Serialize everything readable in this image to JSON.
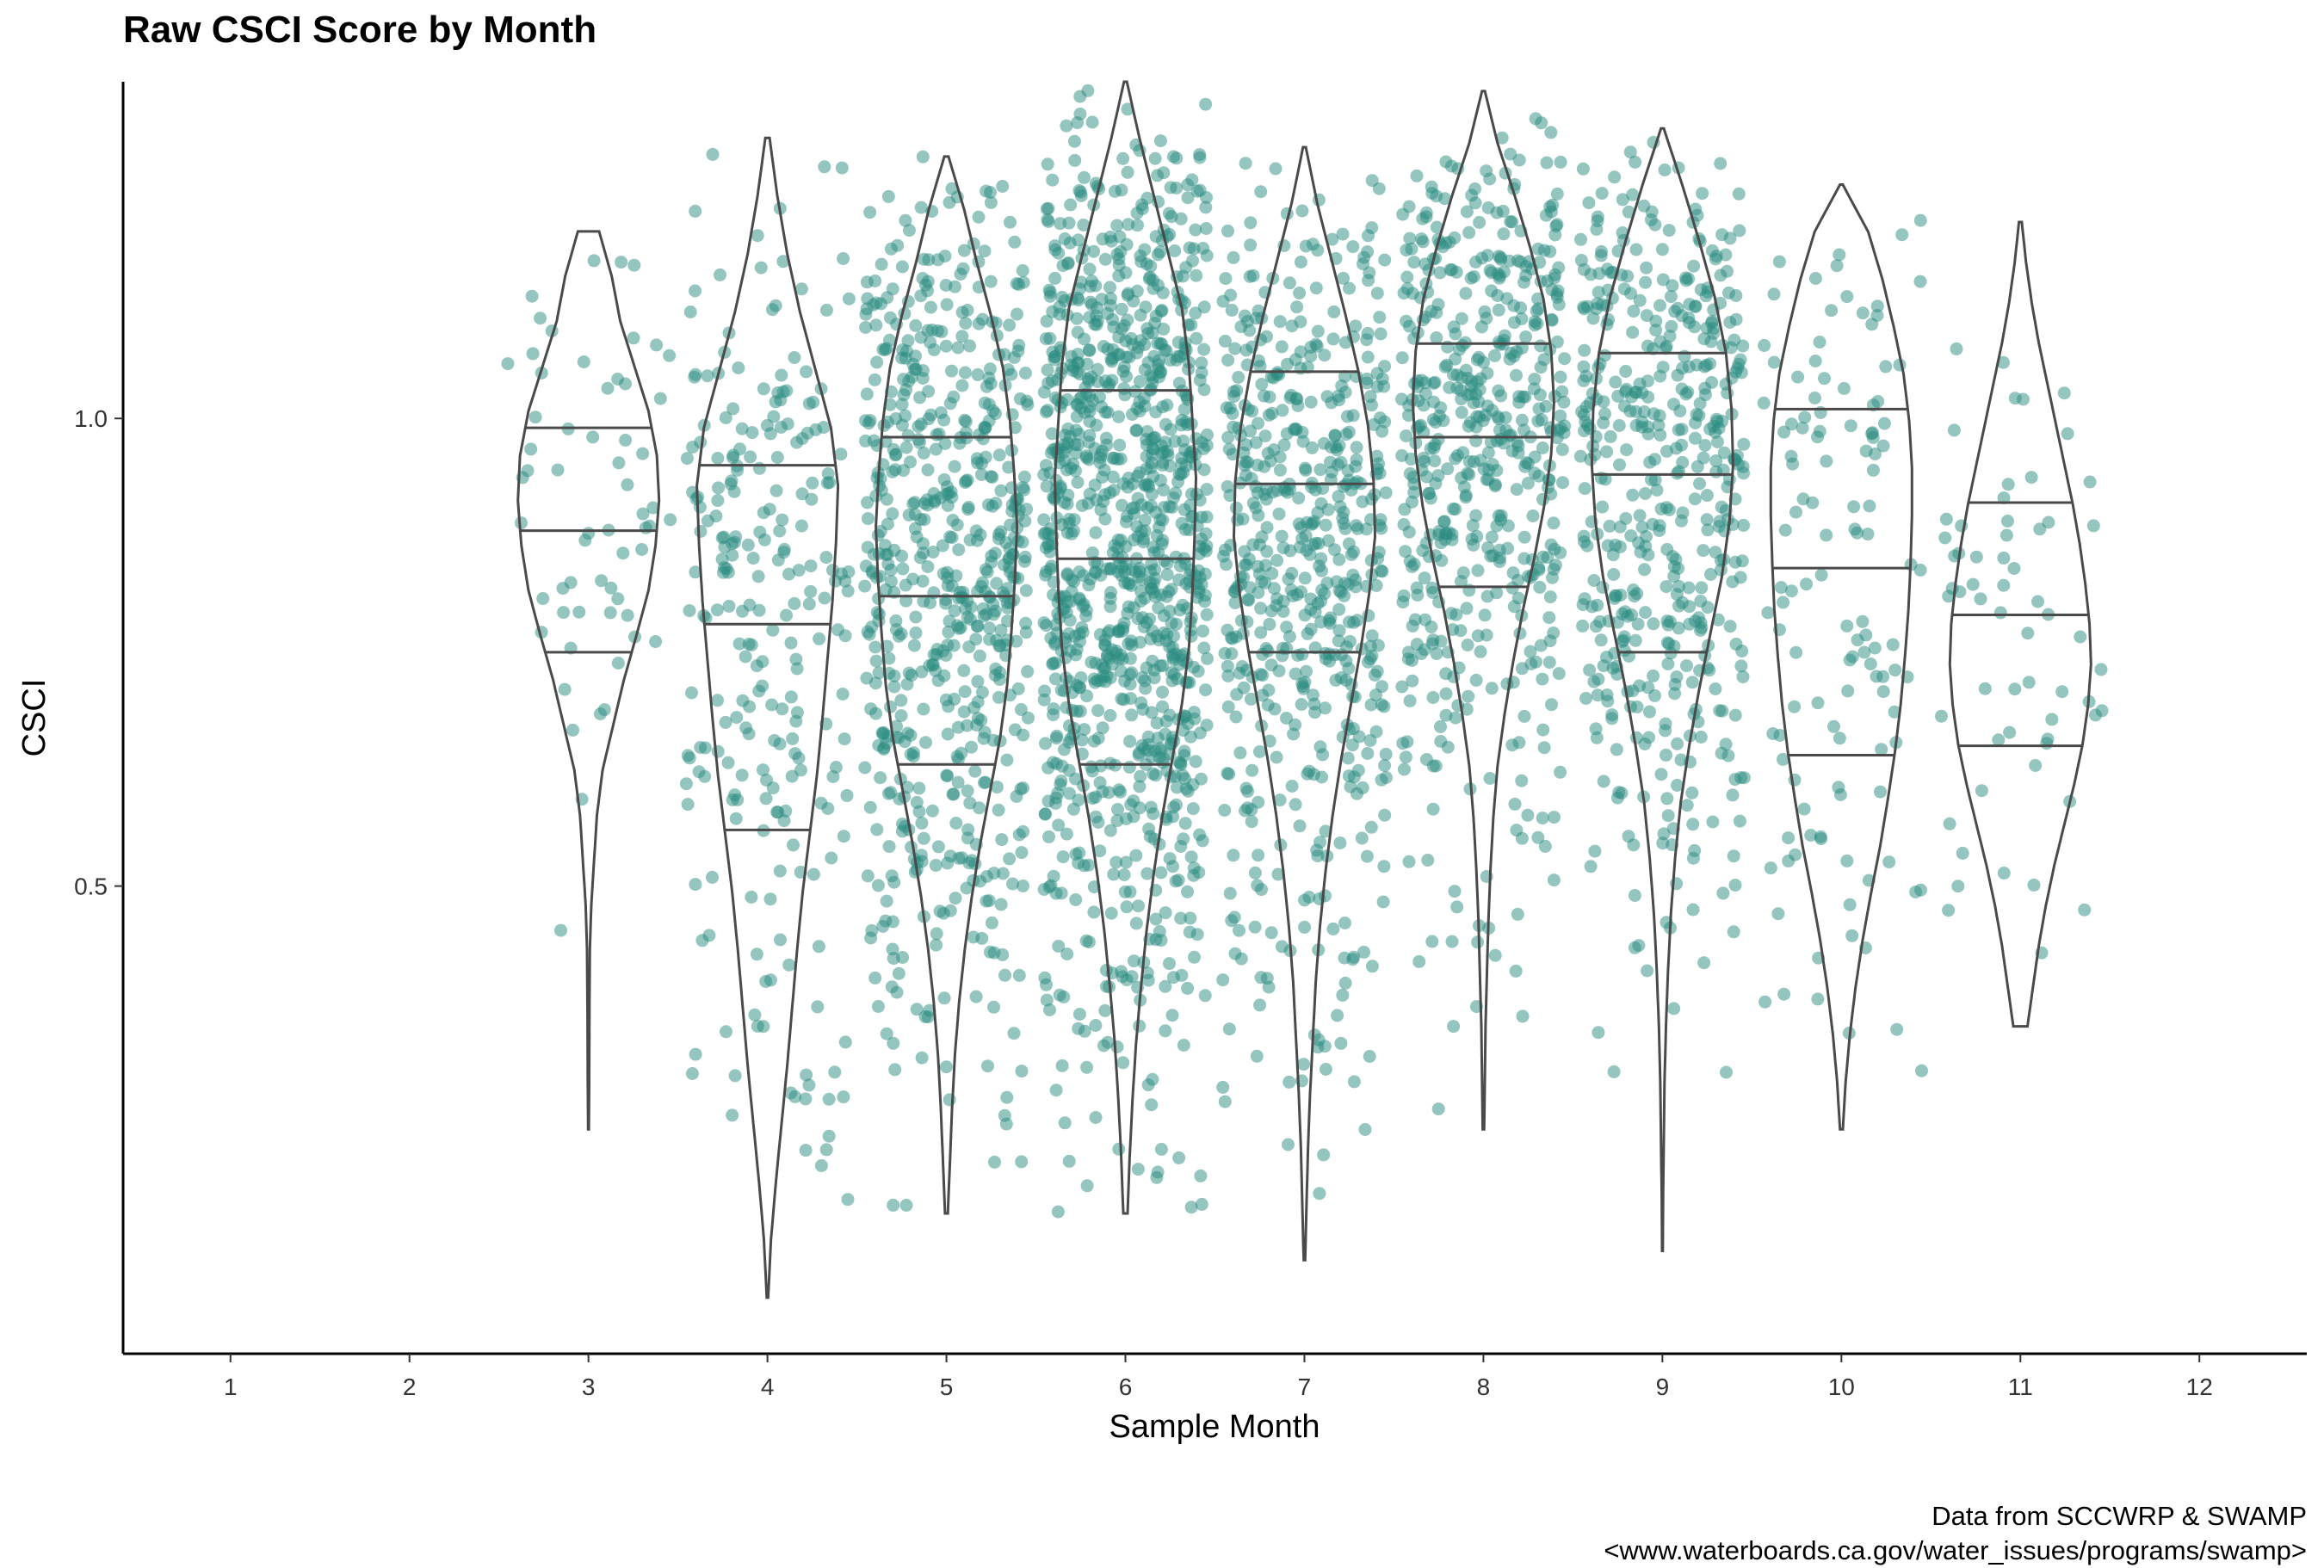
{
  "chart_data": {
    "type": "violin",
    "title": "Raw CSCI Score by Month",
    "xlabel": "Sample Month",
    "ylabel": "CSCI",
    "caption_line1": "Data from SCCWRP & SWAMP",
    "caption_line2": "<www.waterboards.ca.gov/water_issues/programs/swamp>",
    "xlim": [
      0.4,
      12.6
    ],
    "ylim": [
      0.0,
      1.36
    ],
    "x_ticks": [
      1,
      2,
      3,
      4,
      5,
      6,
      7,
      8,
      9,
      10,
      11,
      12
    ],
    "y_ticks": [
      0.5,
      1.0
    ],
    "y_tick_labels": [
      "0.5",
      "1.0"
    ],
    "grid": false,
    "point_color": "#2a8c80",
    "outline_color": "#4a4a4a",
    "groups": [
      {
        "month": 3,
        "n": 60,
        "min": 0.24,
        "max": 1.2,
        "q1": 0.75,
        "median": 0.88,
        "q3": 0.99,
        "density": [
          0.005,
          0.01,
          0.012,
          0.015,
          0.02,
          0.04,
          0.08,
          0.12,
          0.2,
          0.35,
          0.5,
          0.68,
          0.85,
          0.95,
          1.0,
          0.97,
          0.85,
          0.65,
          0.45,
          0.33,
          0.15
        ]
      },
      {
        "month": 4,
        "n": 240,
        "min": 0.06,
        "max": 1.3,
        "q1": 0.56,
        "median": 0.78,
        "q3": 0.95,
        "density": [
          0.01,
          0.05,
          0.12,
          0.2,
          0.28,
          0.35,
          0.42,
          0.5,
          0.6,
          0.7,
          0.78,
          0.85,
          0.92,
          0.97,
          1.0,
          0.9,
          0.68,
          0.46,
          0.28,
          0.14,
          0.03
        ]
      },
      {
        "month": 5,
        "n": 620,
        "min": 0.15,
        "max": 1.28,
        "q1": 0.63,
        "median": 0.81,
        "q3": 0.98,
        "density": [
          0.02,
          0.05,
          0.08,
          0.12,
          0.18,
          0.26,
          0.36,
          0.48,
          0.62,
          0.76,
          0.86,
          0.92,
          0.97,
          1.0,
          0.96,
          0.9,
          0.8,
          0.63,
          0.43,
          0.25,
          0.03
        ]
      },
      {
        "month": 6,
        "n": 1050,
        "min": 0.15,
        "max": 1.36,
        "q1": 0.63,
        "median": 0.85,
        "q3": 1.03,
        "density": [
          0.03,
          0.06,
          0.1,
          0.15,
          0.22,
          0.3,
          0.4,
          0.52,
          0.66,
          0.8,
          0.9,
          0.95,
          0.98,
          1.0,
          0.95,
          0.9,
          0.8,
          0.6,
          0.4,
          0.2,
          0.02
        ]
      },
      {
        "month": 7,
        "n": 560,
        "min": 0.1,
        "max": 1.29,
        "q1": 0.75,
        "median": 0.93,
        "q3": 1.05,
        "density": [
          0.01,
          0.03,
          0.05,
          0.08,
          0.12,
          0.16,
          0.22,
          0.3,
          0.4,
          0.52,
          0.66,
          0.8,
          0.92,
          1.0,
          0.98,
          0.9,
          0.76,
          0.58,
          0.38,
          0.18,
          0.02
        ]
      },
      {
        "month": 8,
        "n": 520,
        "min": 0.24,
        "max": 1.35,
        "q1": 0.82,
        "median": 0.98,
        "q3": 1.08,
        "density": [
          0.01,
          0.02,
          0.03,
          0.05,
          0.07,
          0.1,
          0.14,
          0.2,
          0.3,
          0.42,
          0.56,
          0.72,
          0.86,
          0.96,
          1.0,
          0.96,
          0.85,
          0.66,
          0.44,
          0.2,
          0.02
        ]
      },
      {
        "month": 9,
        "n": 480,
        "min": 0.11,
        "max": 1.31,
        "q1": 0.75,
        "median": 0.94,
        "q3": 1.07,
        "density": [
          0.005,
          0.01,
          0.02,
          0.03,
          0.05,
          0.08,
          0.12,
          0.18,
          0.26,
          0.38,
          0.52,
          0.68,
          0.84,
          0.95,
          1.0,
          0.98,
          0.9,
          0.74,
          0.52,
          0.28,
          0.02
        ]
      },
      {
        "month": 10,
        "n": 120,
        "min": 0.24,
        "max": 1.25,
        "q1": 0.64,
        "median": 0.84,
        "q3": 1.01,
        "density": [
          0.02,
          0.06,
          0.12,
          0.2,
          0.3,
          0.42,
          0.55,
          0.66,
          0.76,
          0.84,
          0.9,
          0.95,
          0.98,
          1.0,
          1.0,
          0.96,
          0.88,
          0.74,
          0.58,
          0.38,
          0.02
        ]
      },
      {
        "month": 11,
        "n": 60,
        "min": 0.35,
        "max": 1.21,
        "q1": 0.65,
        "median": 0.79,
        "q3": 0.91,
        "density": [
          0.1,
          0.18,
          0.26,
          0.36,
          0.48,
          0.62,
          0.76,
          0.88,
          0.96,
          1.0,
          0.98,
          0.92,
          0.84,
          0.74,
          0.62,
          0.5,
          0.38,
          0.26,
          0.16,
          0.08,
          0.02
        ]
      }
    ]
  }
}
